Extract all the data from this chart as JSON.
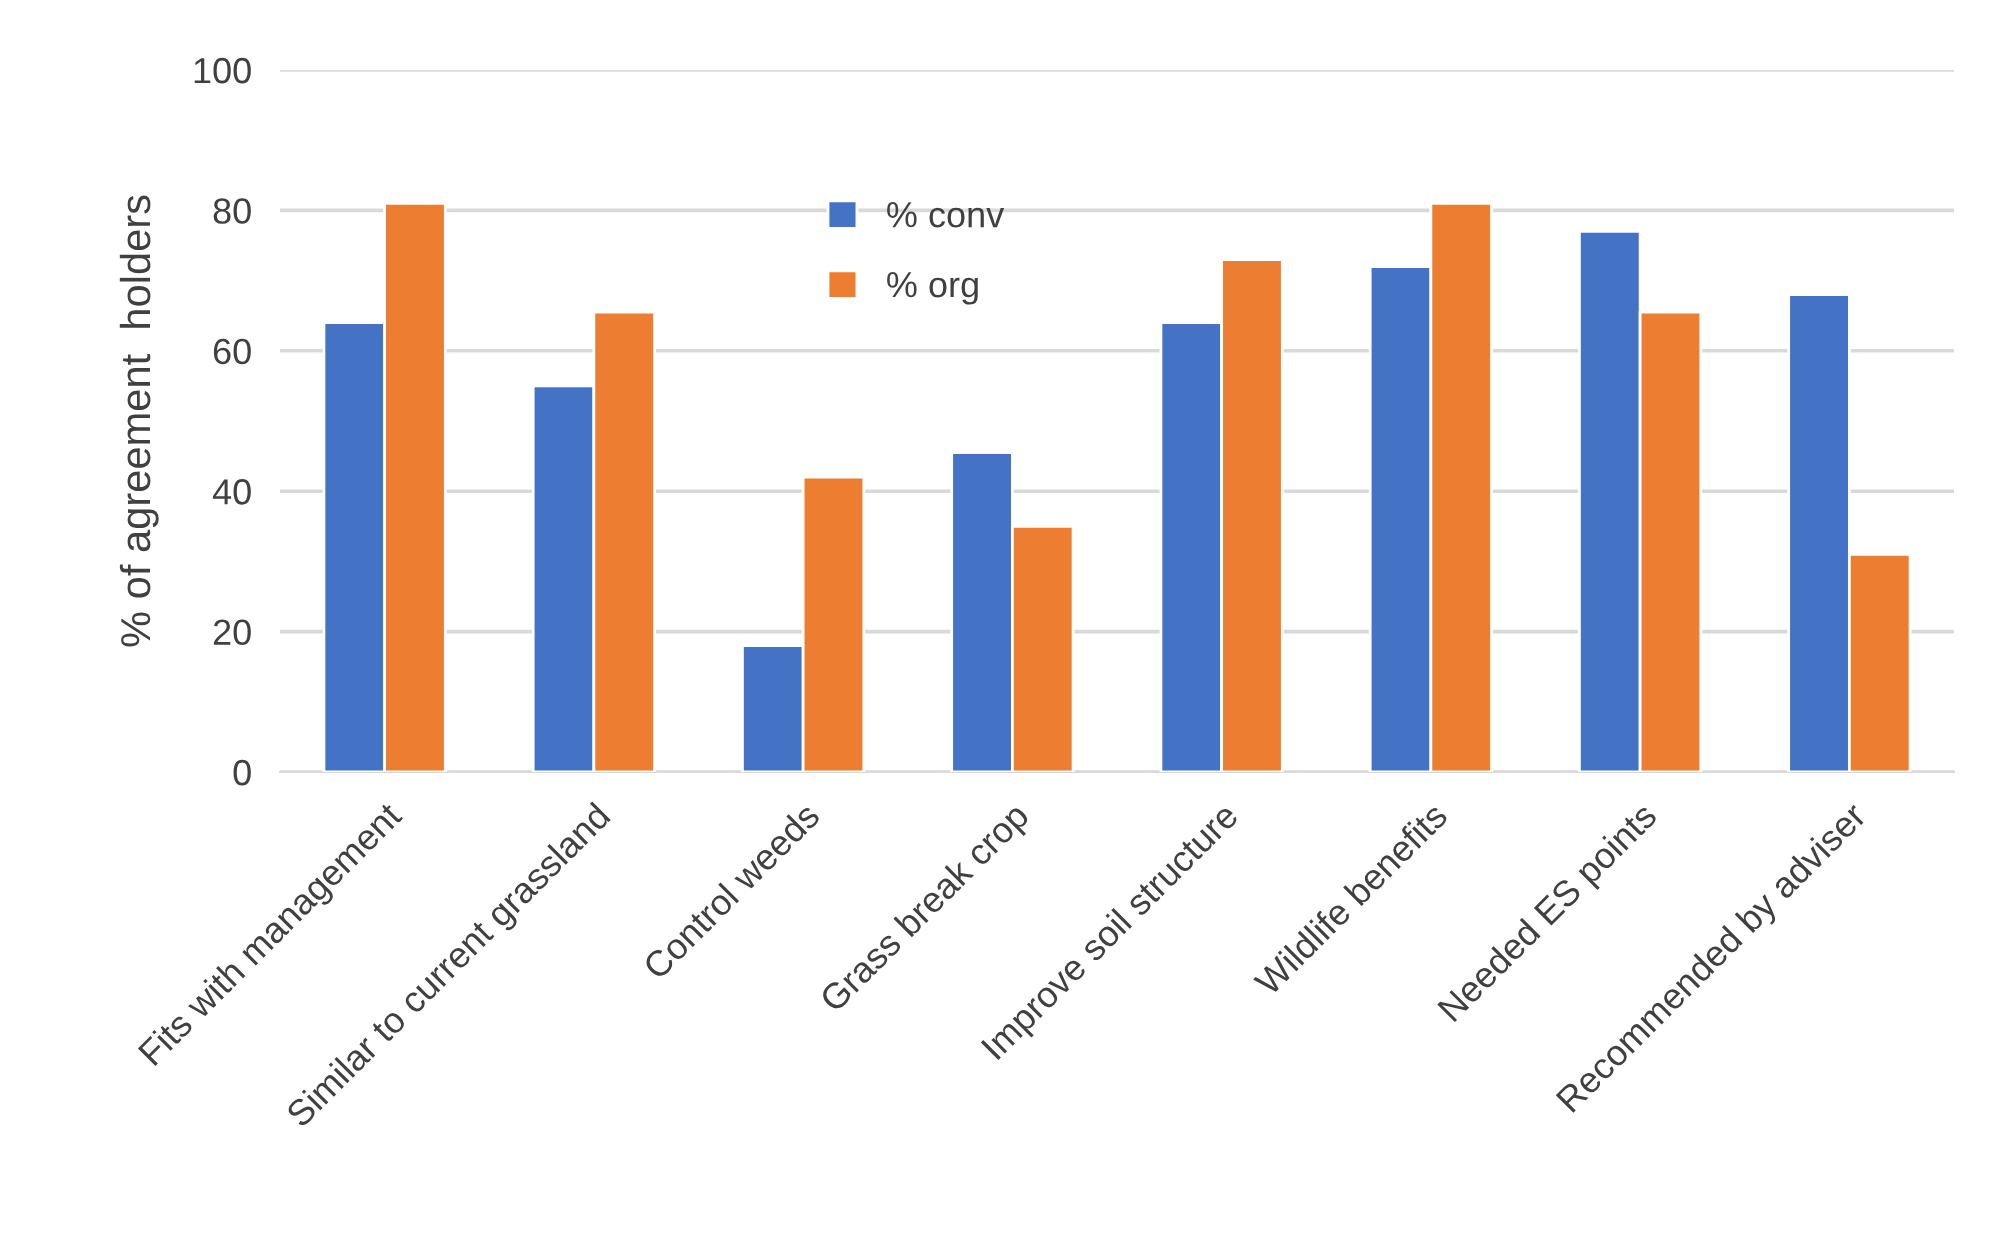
{
  "chart_data": {
    "type": "bar",
    "ylabel": "% of agreement  holders",
    "categories": [
      "Fits with management",
      "Similar to current grassland",
      "Control weeds",
      "Grass break crop",
      "Improve soil structure",
      "Wildlife benefits",
      "Needed ES points",
      "Recommended by adviser"
    ],
    "series": [
      {
        "name": "% conv",
        "color": "#4472c4",
        "values": [
          64,
          55,
          18,
          45.5,
          64,
          72,
          77,
          68
        ]
      },
      {
        "name": "% org",
        "color": "#ed7d31",
        "values": [
          81,
          65.5,
          42,
          35,
          73,
          81,
          65.5,
          31
        ]
      }
    ],
    "ylim": [
      0,
      100
    ],
    "yticks": [
      0,
      20,
      40,
      60,
      80,
      100
    ],
    "grid": "y",
    "legend": "top"
  }
}
